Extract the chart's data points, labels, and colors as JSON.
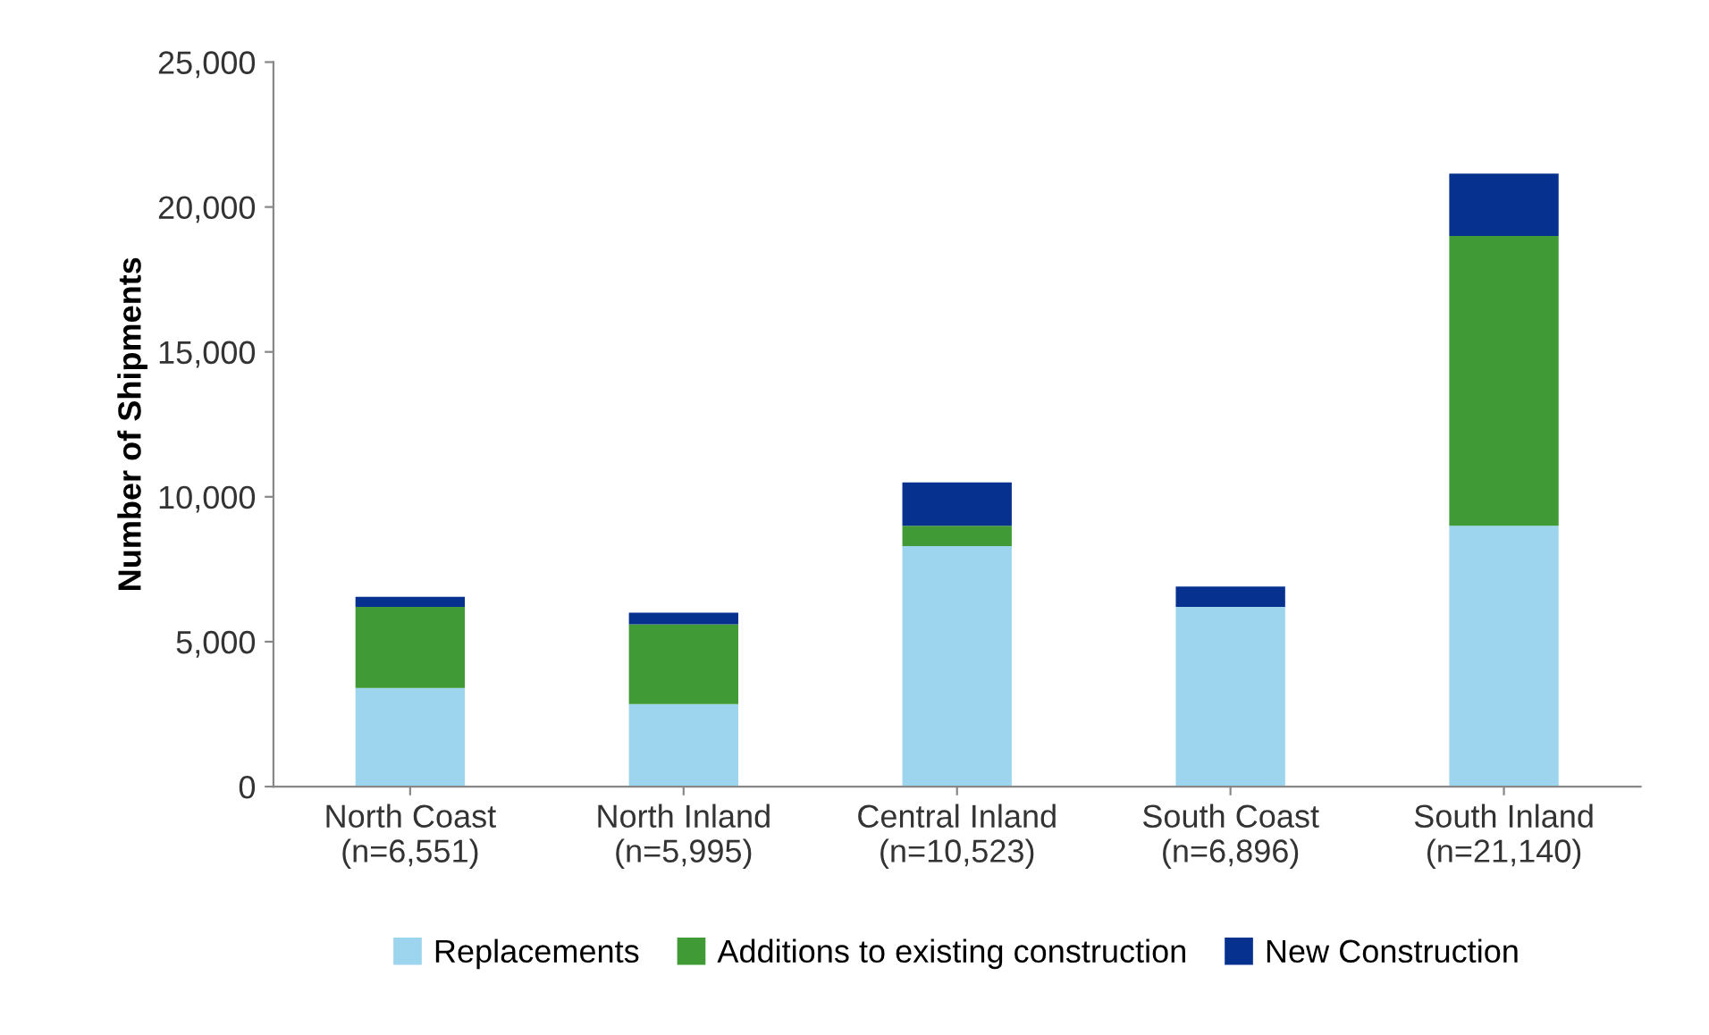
{
  "chart_data": {
    "type": "bar",
    "stacked": true,
    "ylabel": "Number of Shipments",
    "categories": [
      "North Coast\n(n=6,551)",
      "North Inland\n(n=5,995)",
      "Central Inland\n(n=10,523)",
      "South Coast\n(n=6,896)",
      "South Inland\n(n=21,140)"
    ],
    "series": [
      {
        "name": "Replacements",
        "color": "#9dd5ee",
        "values": [
          3400,
          2850,
          8300,
          6200,
          9000
        ]
      },
      {
        "name": "Additions to existing construction",
        "color": "#409a35",
        "values": [
          2800,
          2750,
          700,
          0,
          10000
        ]
      },
      {
        "name": "New Construction",
        "color": "#06318f",
        "values": [
          350,
          400,
          1500,
          700,
          2150
        ]
      }
    ],
    "ylim": [
      0,
      25000
    ],
    "yticks": [
      {
        "value": 0,
        "label": "0"
      },
      {
        "value": 5000,
        "label": "5,000"
      },
      {
        "value": 10000,
        "label": "10,000"
      },
      {
        "value": 15000,
        "label": "15,000"
      },
      {
        "value": 20000,
        "label": "20,000"
      },
      {
        "value": 25000,
        "label": "25,000"
      }
    ],
    "grid": false,
    "legend": "bottom"
  }
}
